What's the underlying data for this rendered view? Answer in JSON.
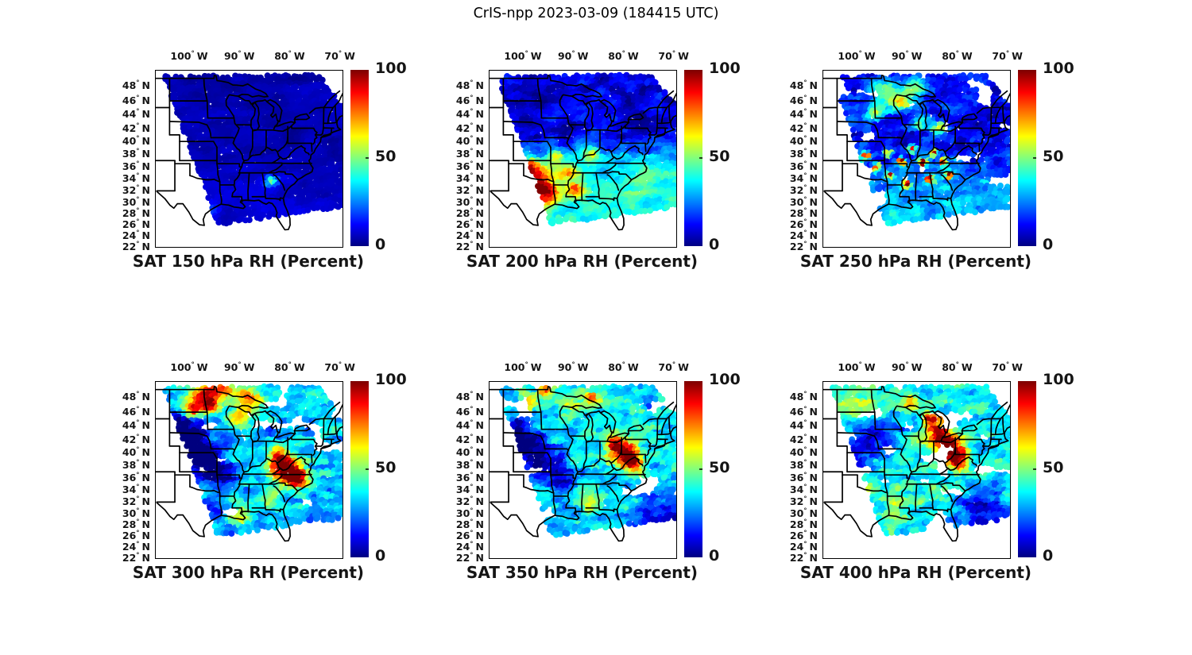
{
  "figure_title": "CrIS-npp 2023-03-09 (184415 UTC)",
  "symbols": {
    "degree": "°",
    "north": "N",
    "west": "W"
  },
  "chart_data": {
    "type": "heatmap",
    "satellite": "CrIS-npp",
    "date": "2023-03-09",
    "time_utc": "184415",
    "variable": "Relative Humidity",
    "units": "Percent",
    "value_range": [
      0,
      100
    ],
    "colormap": "jet",
    "basemap": "US state boundaries, Great Lakes and coastline",
    "lon_ticks_deg_w": [
      100,
      90,
      80,
      70
    ],
    "lat_ticks_deg_n": [
      48,
      46,
      44,
      42,
      40,
      38,
      36,
      34,
      32,
      30,
      28,
      26,
      24,
      22
    ],
    "lon_range_deg": [
      -106.8,
      -69.63
    ],
    "lat_range_deg": [
      22,
      50
    ],
    "colorbar": {
      "orientation": "vertical",
      "tick_labels": [
        "100",
        "50",
        "0"
      ],
      "tick_values": [
        100,
        50,
        0
      ]
    },
    "swath_polygon_uv": [
      [
        0.043,
        0.032
      ],
      [
        0.872,
        0.023
      ],
      [
        1.0,
        0.203
      ],
      [
        1.0,
        0.775
      ],
      [
        0.332,
        0.874
      ]
    ],
    "panels": [
      {
        "level_hPa": 150,
        "title": "SAT 150 hPa RH (Percent)",
        "summary": "Nearly uniform very low RH (0-12%) over whole swath; small 40% patch over Georgia",
        "field": {
          "seed": 1,
          "base": 5,
          "grad": [
            3,
            0.3,
            0.9
          ],
          "noiseAmp": 5,
          "noiseScale": 9,
          "holeThresh": 2,
          "blobs": [
            [
              0.62,
              0.63,
              0.022,
              42
            ],
            [
              0.3,
              0.8,
              0.03,
              12
            ]
          ]
        }
      },
      {
        "level_hPa": 200,
        "title": "SAT 200 hPa RH (Percent)",
        "summary": "Low RH north (~10%), moist band 40-80% over Texas/Louisiana/Arkansas, cyan southeast",
        "field": {
          "seed": 2,
          "base": 9,
          "grad": [
            30,
            0.32,
            0.62
          ],
          "noiseAmp": 13,
          "noiseScale": 13,
          "holeThresh": 2,
          "blobs": [
            [
              0.24,
              0.62,
              0.06,
              48
            ],
            [
              0.31,
              0.7,
              0.05,
              55
            ],
            [
              0.2,
              0.55,
              0.04,
              40
            ],
            [
              0.42,
              0.58,
              0.04,
              34
            ],
            [
              0.55,
              0.47,
              0.03,
              40
            ],
            [
              0.47,
              0.68,
              0.035,
              36
            ],
            [
              0.36,
              0.49,
              0.03,
              30
            ],
            [
              0.85,
              0.6,
              0.1,
              8
            ]
          ]
        }
      },
      {
        "level_hPa": 250,
        "title": "SAT 250 hPa RH (Percent)",
        "summary": "Blue north with 40-60% patches upper midwest; discrete saturated (80-100%) spots along Missouri-Tennessee-Carolinas band; data gaps",
        "field": {
          "seed": 3,
          "base": 13,
          "grad": [
            18,
            0.4,
            0.75
          ],
          "noiseAmp": 15,
          "noiseScale": 15,
          "holeThresh": 0.8,
          "blobs": [
            [
              0.33,
              0.13,
              0.05,
              40
            ],
            [
              0.42,
              0.18,
              0.04,
              45
            ],
            [
              0.28,
              0.24,
              0.035,
              38
            ],
            [
              0.5,
              0.1,
              0.04,
              36
            ],
            [
              0.17,
              0.52,
              0.016,
              90
            ],
            [
              0.23,
              0.49,
              0.016,
              85
            ],
            [
              0.29,
              0.55,
              0.016,
              90
            ],
            [
              0.35,
              0.47,
              0.015,
              80
            ],
            [
              0.42,
              0.52,
              0.016,
              85
            ],
            [
              0.48,
              0.45,
              0.015,
              80
            ],
            [
              0.54,
              0.52,
              0.016,
              90
            ],
            [
              0.6,
              0.47,
              0.015,
              85
            ],
            [
              0.65,
              0.52,
              0.016,
              88
            ],
            [
              0.57,
              0.62,
              0.015,
              85
            ],
            [
              0.45,
              0.65,
              0.015,
              80
            ],
            [
              0.36,
              0.6,
              0.014,
              75
            ],
            [
              0.68,
              0.6,
              0.015,
              85
            ],
            [
              0.72,
              0.5,
              0.015,
              80
            ],
            [
              0.62,
              0.33,
              0.03,
              45
            ],
            [
              0.52,
              0.3,
              0.03,
              40
            ]
          ]
        }
      },
      {
        "level_hPa": 300,
        "title": "SAT 300 hPa RH (Percent)",
        "summary": "Moist north (50-90%) with red cells, dry diagonal band through plains, near-saturated air over Carolinas/Virginia; data gaps",
        "field": {
          "seed": 4,
          "base": 32,
          "grad": [
            -4,
            0.6,
            0.9
          ],
          "noiseAmp": 19,
          "noiseScale": 14,
          "holeThresh": 0.82,
          "blobs": [
            [
              0.25,
              0.07,
              0.05,
              48
            ],
            [
              0.35,
              0.05,
              0.045,
              52
            ],
            [
              0.5,
              0.1,
              0.045,
              42
            ],
            [
              0.29,
              0.14,
              0.035,
              58
            ],
            [
              0.2,
              0.17,
              0.035,
              50
            ],
            [
              0.45,
              0.2,
              0.04,
              36
            ],
            [
              0.16,
              0.33,
              0.08,
              -34
            ],
            [
              0.26,
              0.43,
              0.075,
              -32
            ],
            [
              0.36,
              0.53,
              0.065,
              -28
            ],
            [
              0.12,
              0.24,
              0.06,
              -26
            ],
            [
              0.7,
              0.5,
              0.055,
              68
            ],
            [
              0.76,
              0.55,
              0.04,
              72
            ],
            [
              0.66,
              0.44,
              0.035,
              55
            ],
            [
              0.45,
              0.75,
              0.05,
              26
            ],
            [
              0.6,
              0.68,
              0.04,
              22
            ],
            [
              0.3,
              0.72,
              0.04,
              -12
            ]
          ]
        }
      },
      {
        "level_hPa": 350,
        "title": "SAT 350 hPa RH (Percent)",
        "summary": "Mixed 30-70% north, dry diagonal band central plains, deep red (90-100%) mid-Atlantic, dry southeast corner; data gaps",
        "field": {
          "seed": 5,
          "base": 36,
          "grad": [
            -8,
            0.65,
            0.95
          ],
          "noiseAmp": 20,
          "noiseScale": 16,
          "holeThresh": 0.82,
          "blobs": [
            [
              0.3,
              0.06,
              0.03,
              42
            ],
            [
              0.55,
              0.09,
              0.03,
              38
            ],
            [
              0.22,
              0.11,
              0.028,
              40
            ],
            [
              0.42,
              0.12,
              0.05,
              25
            ],
            [
              0.2,
              0.37,
              0.075,
              -33
            ],
            [
              0.3,
              0.47,
              0.07,
              -30
            ],
            [
              0.14,
              0.27,
              0.055,
              -27
            ],
            [
              0.4,
              0.56,
              0.05,
              -22
            ],
            [
              0.72,
              0.4,
              0.05,
              62
            ],
            [
              0.77,
              0.46,
              0.038,
              66
            ],
            [
              0.67,
              0.35,
              0.03,
              50
            ],
            [
              0.92,
              0.8,
              0.09,
              -24
            ],
            [
              0.55,
              0.7,
              0.05,
              20
            ]
          ]
        }
      },
      {
        "level_hPa": 400,
        "title": "SAT 400 hPa RH (Percent)",
        "summary": "Green/cyan northwest, dry patches mid-plains, red cluster Ohio Valley to mid-Atlantic, cyan south, dry southeast edge; data gaps",
        "field": {
          "seed": 6,
          "base": 38,
          "grad": [
            -6,
            0.7,
            0.95
          ],
          "noiseAmp": 19,
          "noiseScale": 15,
          "holeThresh": 0.76,
          "blobs": [
            [
              0.18,
              0.1,
              0.1,
              12
            ],
            [
              0.28,
              0.33,
              0.065,
              -30
            ],
            [
              0.17,
              0.42,
              0.055,
              -26
            ],
            [
              0.38,
              0.25,
              0.045,
              -20
            ],
            [
              0.62,
              0.3,
              0.05,
              52
            ],
            [
              0.68,
              0.38,
              0.05,
              58
            ],
            [
              0.73,
              0.45,
              0.04,
              52
            ],
            [
              0.57,
              0.22,
              0.032,
              45
            ],
            [
              0.47,
              0.12,
              0.03,
              40
            ],
            [
              0.4,
              0.75,
              0.06,
              18
            ],
            [
              0.85,
              0.75,
              0.1,
              -26
            ],
            [
              0.25,
              0.6,
              0.04,
              15
            ]
          ]
        }
      }
    ]
  }
}
